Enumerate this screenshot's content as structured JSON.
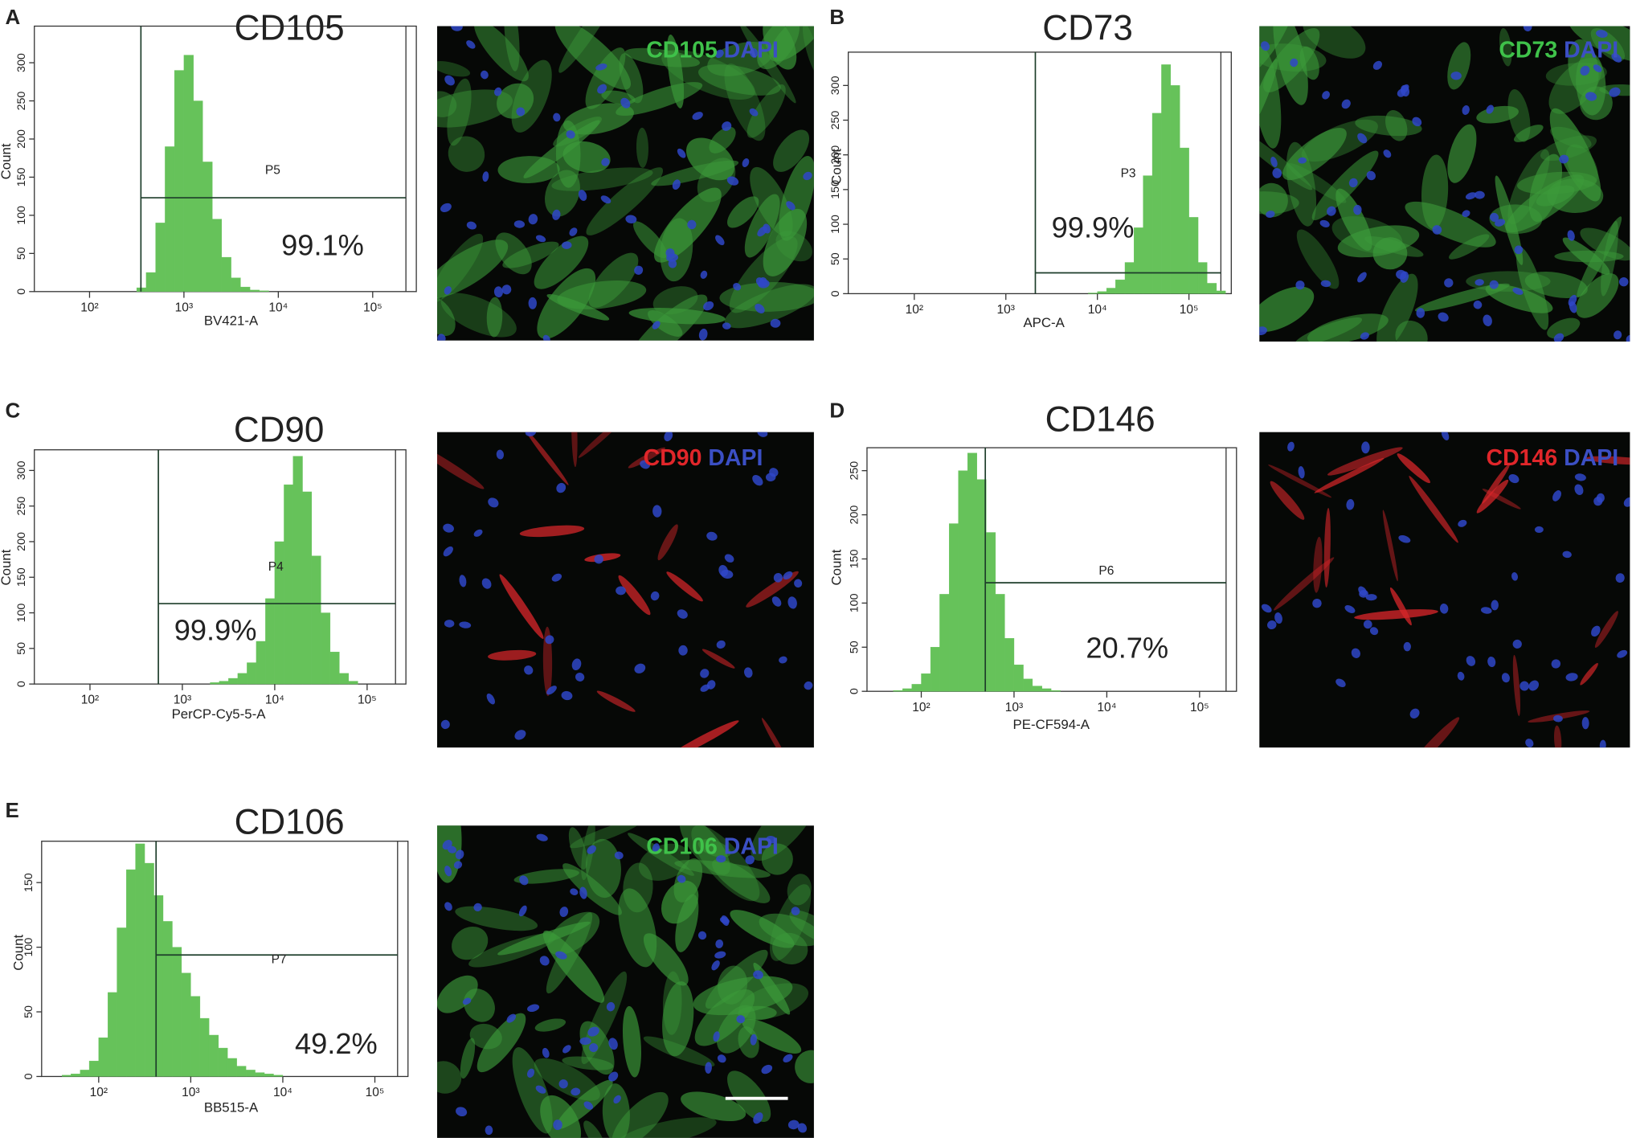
{
  "chart_data": [
    {
      "type": "histogram",
      "title": "CD105",
      "xlabel": "BV421-A",
      "ylabel": "Count",
      "log_x": true,
      "color": "#66c25a",
      "bins": [
        316,
        398,
        501,
        631,
        794,
        1000,
        1260,
        1580,
        2000,
        2510,
        3160,
        3980,
        5010,
        6310,
        7940
      ],
      "values": [
        5,
        25,
        90,
        190,
        290,
        310,
        250,
        170,
        95,
        45,
        18,
        6,
        2,
        1
      ],
      "xlim": [
        26,
        290000
      ],
      "ylim": [
        0,
        348
      ],
      "xticks": [
        {
          "value": 100,
          "label": "10²"
        },
        {
          "value": 1000,
          "label": "10³"
        },
        {
          "value": 10000,
          "label": "10⁴"
        },
        {
          "value": 100000,
          "label": "10⁵"
        }
      ],
      "yticks": [
        0,
        50,
        100,
        150,
        200,
        250,
        300
      ],
      "gate": {
        "x": 350,
        "y": 123,
        "label": "P5",
        "percent": "99.1%"
      }
    },
    {
      "type": "histogram",
      "title": "CD73",
      "xlabel": "APC-A",
      "ylabel": "Count",
      "log_x": true,
      "color": "#66c25a",
      "bins": [
        7940,
        10000,
        12600,
        15800,
        20000,
        25100,
        31600,
        39800,
        50100,
        63100,
        79400,
        100000,
        126000,
        158000,
        200000,
        251000
      ],
      "values": [
        1,
        3,
        8,
        20,
        45,
        95,
        170,
        260,
        330,
        300,
        210,
        110,
        45,
        15,
        4
      ],
      "xlim": [
        19,
        290000
      ],
      "ylim": [
        0,
        348
      ],
      "xticks": [
        {
          "value": 100,
          "label": "10²"
        },
        {
          "value": 1000,
          "label": "10³"
        },
        {
          "value": 10000,
          "label": "10⁴"
        },
        {
          "value": 100000,
          "label": "10⁵"
        }
      ],
      "yticks": [
        0,
        50,
        100,
        150,
        200,
        250,
        300
      ],
      "gate": {
        "x": 2100,
        "y": 30,
        "label": "P3",
        "percent": "99.9%"
      }
    },
    {
      "type": "histogram",
      "title": "CD90",
      "xlabel": "PerCP-Cy5-5-A",
      "ylabel": "Count",
      "log_x": true,
      "color": "#66c25a",
      "bins": [
        2000,
        2510,
        3160,
        3980,
        5010,
        6310,
        7940,
        10000,
        12600,
        15800,
        20000,
        25100,
        31600,
        39800,
        50100,
        63100,
        79400
      ],
      "values": [
        2,
        4,
        8,
        15,
        30,
        60,
        120,
        200,
        280,
        320,
        270,
        180,
        100,
        45,
        15,
        4
      ],
      "xlim": [
        25,
        263000
      ],
      "ylim": [
        0,
        329
      ],
      "xticks": [
        {
          "value": 100,
          "label": "10²"
        },
        {
          "value": 1000,
          "label": "10³"
        },
        {
          "value": 10000,
          "label": "10⁴"
        },
        {
          "value": 100000,
          "label": "10⁵"
        }
      ],
      "yticks": [
        0,
        50,
        100,
        150,
        200,
        250,
        300
      ],
      "gate": {
        "x": 550,
        "y": 113,
        "label": "P4",
        "percent": "99.9%"
      }
    },
    {
      "type": "histogram",
      "title": "CD146",
      "xlabel": "PE-CF594-A",
      "ylabel": "Count",
      "log_x": true,
      "color": "#66c25a",
      "bins": [
        50,
        63,
        79,
        100,
        126,
        158,
        200,
        251,
        316,
        398,
        501,
        631,
        794,
        1000,
        1260,
        1580,
        2000,
        2510,
        3160
      ],
      "values": [
        1,
        3,
        8,
        20,
        50,
        110,
        190,
        250,
        270,
        240,
        180,
        110,
        60,
        30,
        14,
        6,
        3,
        1
      ],
      "xlim": [
        26,
        250000
      ],
      "ylim": [
        0,
        276
      ],
      "xticks": [
        {
          "value": 100,
          "label": "10²"
        },
        {
          "value": 1000,
          "label": "10³"
        },
        {
          "value": 10000,
          "label": "10⁴"
        },
        {
          "value": 100000,
          "label": "10⁵"
        }
      ],
      "yticks": [
        0,
        50,
        100,
        150,
        200,
        250
      ],
      "gate": {
        "x": 490,
        "y": 123,
        "label": "P6",
        "percent": "20.7%"
      }
    },
    {
      "type": "histogram",
      "title": "CD106",
      "xlabel": "BB515-A",
      "ylabel": "Count",
      "log_x": true,
      "color": "#66c25a",
      "bins": [
        40,
        50,
        63,
        79,
        100,
        126,
        158,
        200,
        251,
        316,
        398,
        501,
        631,
        794,
        1000,
        1260,
        1580,
        2000,
        2510,
        3160,
        3980,
        5010,
        6310,
        7940,
        10000
      ],
      "values": [
        1,
        2,
        5,
        12,
        30,
        65,
        115,
        160,
        180,
        165,
        140,
        120,
        100,
        80,
        62,
        45,
        32,
        22,
        14,
        8,
        5,
        3,
        2,
        1
      ],
      "xlim": [
        24,
        229000
      ],
      "ylim": [
        0,
        182
      ],
      "xticks": [
        {
          "value": 100,
          "label": "10²"
        },
        {
          "value": 1000,
          "label": "10³"
        },
        {
          "value": 10000,
          "label": "10⁴"
        },
        {
          "value": 100000,
          "label": "10⁵"
        }
      ],
      "yticks": [
        0,
        50,
        100,
        150
      ],
      "gate": {
        "x": 420,
        "y": 94,
        "label": "P7",
        "percent": "49.2%"
      }
    }
  ],
  "panels": [
    {
      "letter": "A",
      "marker": "CD105",
      "marker_color": "#3fc24a",
      "stain": "DAPI",
      "stain_color": "#3b4fc4"
    },
    {
      "letter": "B",
      "marker": "CD73",
      "marker_color": "#3fc24a",
      "stain": "DAPI",
      "stain_color": "#3b4fc4"
    },
    {
      "letter": "C",
      "marker": "CD90",
      "marker_color": "#e0262a",
      "stain": "DAPI",
      "stain_color": "#3b4fc4"
    },
    {
      "letter": "D",
      "marker": "CD146",
      "marker_color": "#e0262a",
      "stain": "DAPI",
      "stain_color": "#3b4fc4"
    },
    {
      "letter": "E",
      "marker": "CD106",
      "marker_color": "#3fc24a",
      "stain": "DAPI",
      "stain_color": "#3b4fc4"
    }
  ]
}
